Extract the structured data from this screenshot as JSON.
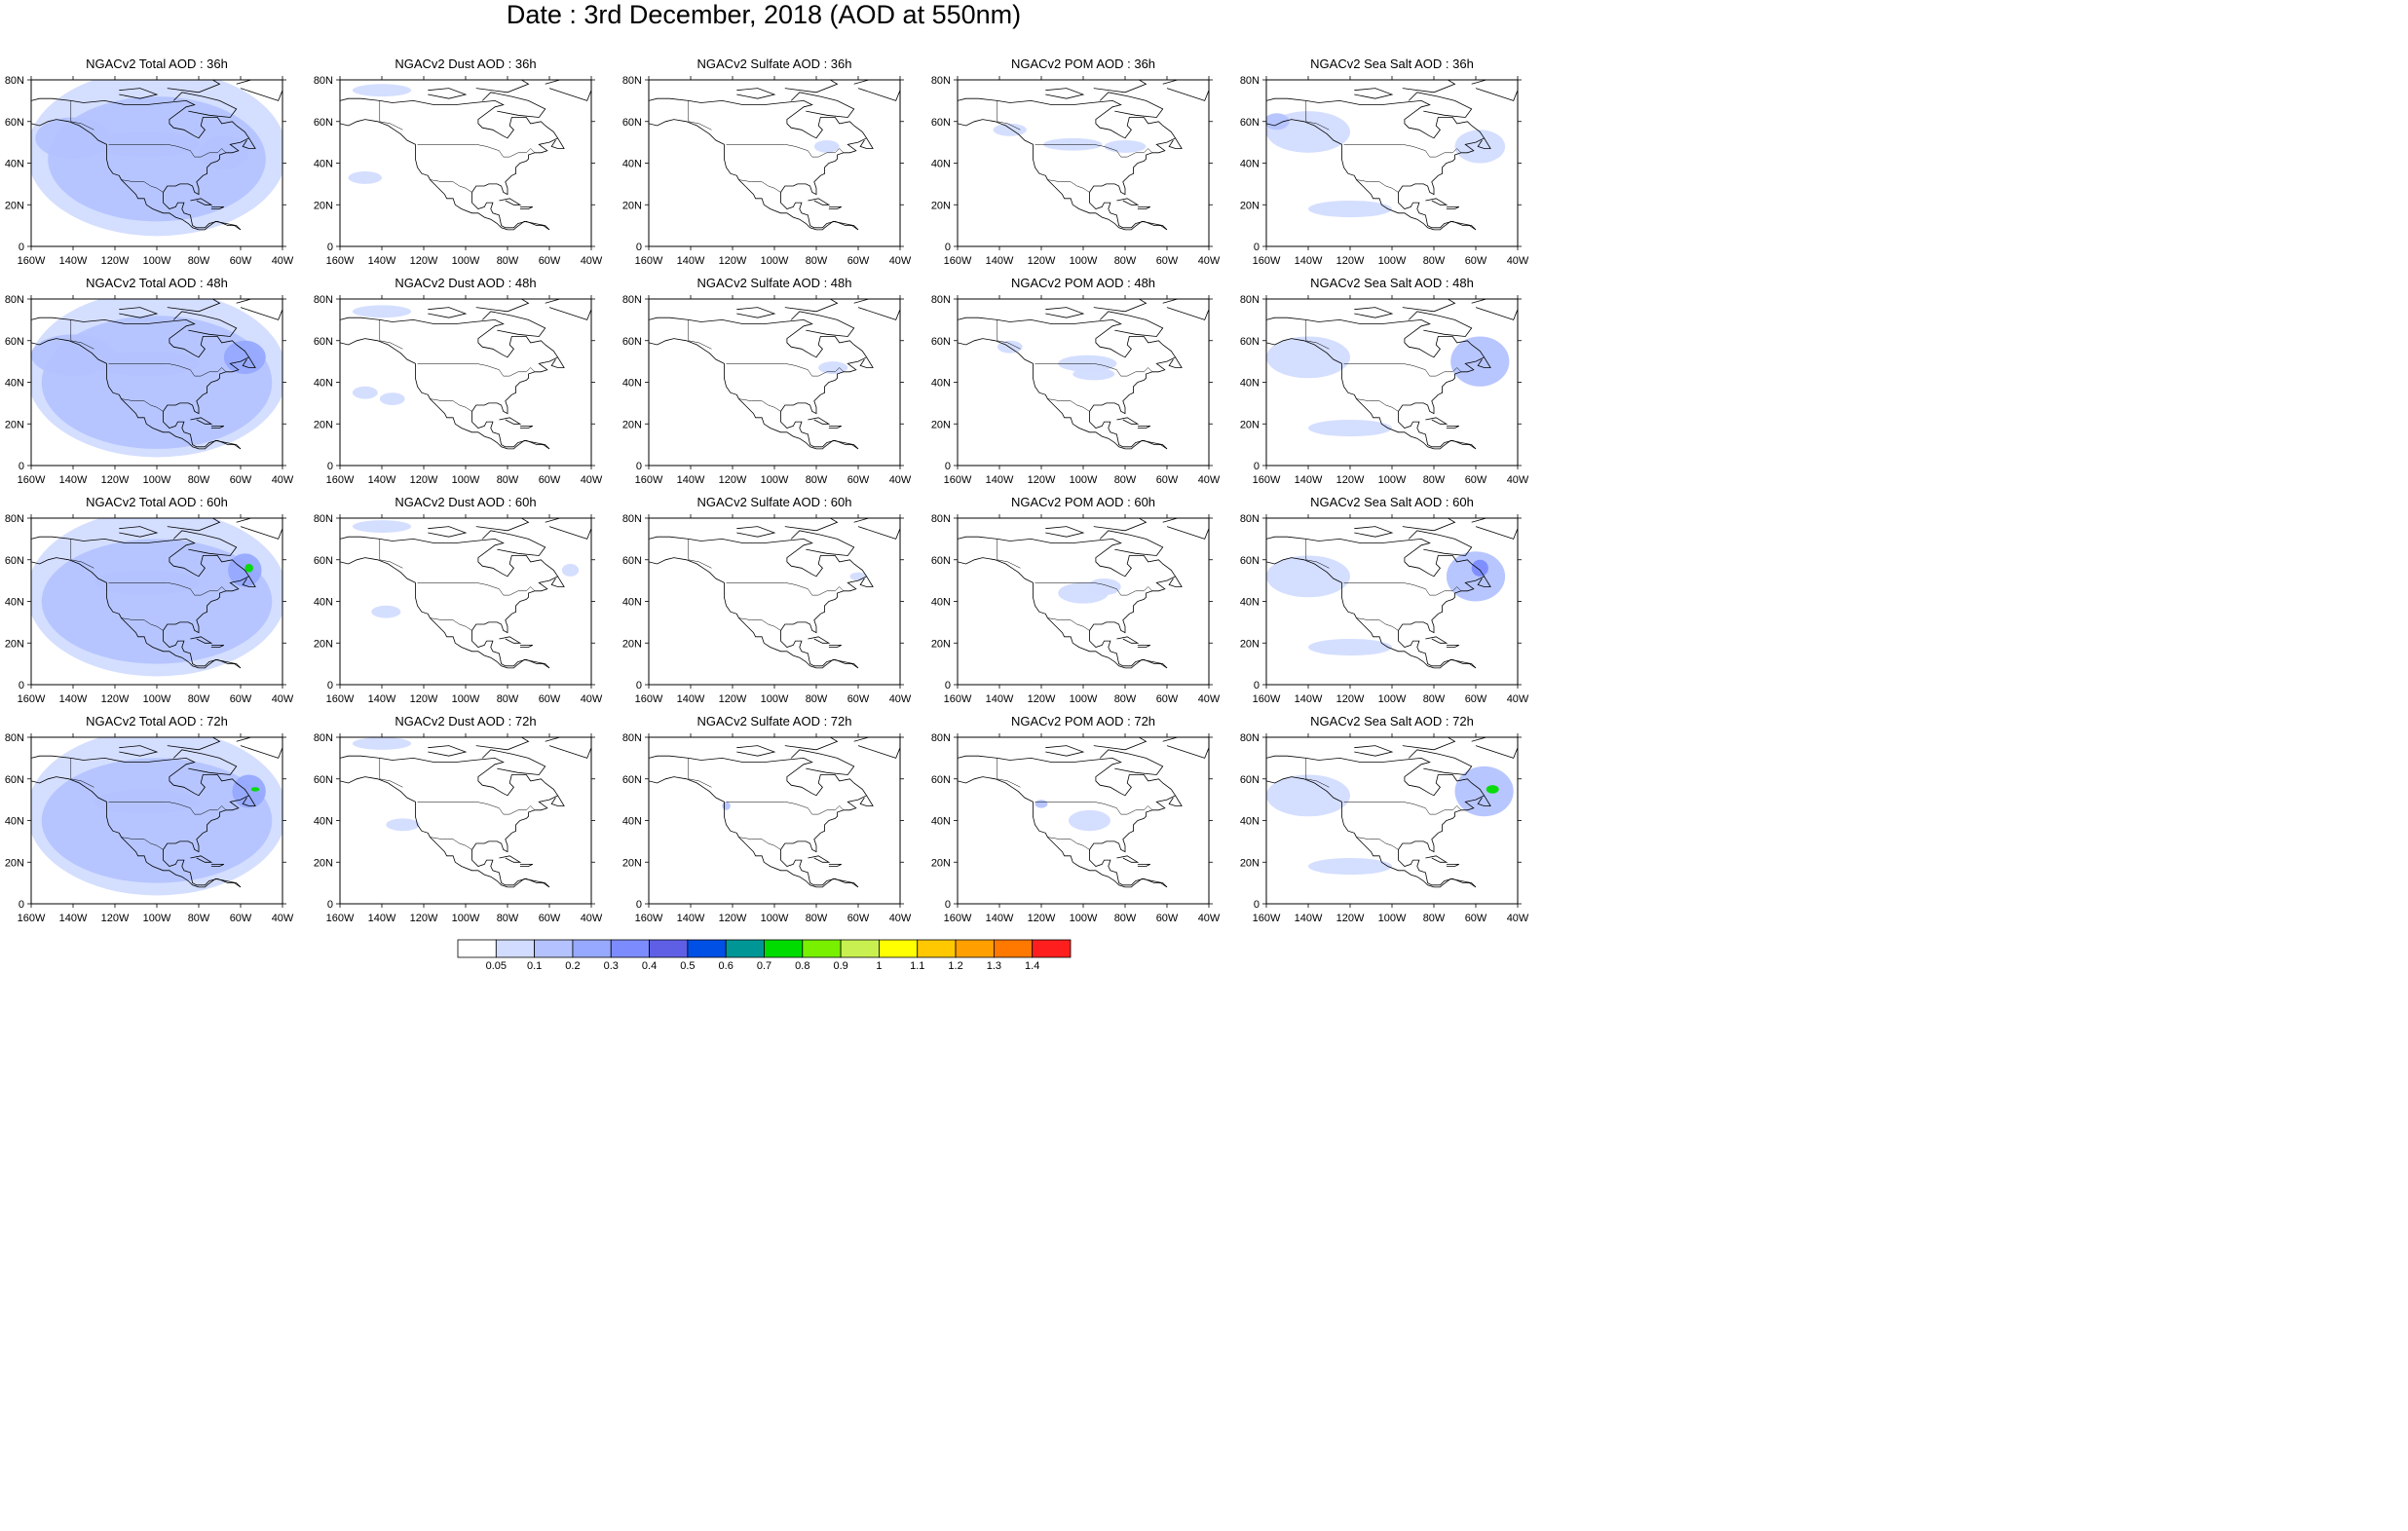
{
  "title": "Date : 3rd December, 2018 (AOD at 550nm)",
  "columns": [
    {
      "key": "total",
      "name": "Total AOD"
    },
    {
      "key": "dust",
      "name": "Dust AOD"
    },
    {
      "key": "sulfate",
      "name": "Sulfate AOD"
    },
    {
      "key": "pom",
      "name": "POM AOD"
    },
    {
      "key": "seasalt",
      "name": "Sea Salt AOD"
    }
  ],
  "rows": [
    "36h",
    "48h",
    "60h",
    "72h"
  ],
  "panels": [
    [
      "NGACv2 Total AOD : 36h",
      "NGACv2 Dust AOD : 36h",
      "NGACv2 Sulfate AOD : 36h",
      "NGACv2 POM AOD : 36h",
      "NGACv2 Sea Salt AOD : 36h"
    ],
    [
      "NGACv2 Total AOD : 48h",
      "NGACv2 Dust AOD : 48h",
      "NGACv2 Sulfate AOD : 48h",
      "NGACv2 POM AOD : 48h",
      "NGACv2 Sea Salt AOD : 48h"
    ],
    [
      "NGACv2 Total AOD : 60h",
      "NGACv2 Dust AOD : 60h",
      "NGACv2 Sulfate AOD : 60h",
      "NGACv2 POM AOD : 60h",
      "NGACv2 Sea Salt AOD : 60h"
    ],
    [
      "NGACv2 Total AOD : 72h",
      "NGACv2 Dust AOD : 72h",
      "NGACv2 Sulfate AOD : 72h",
      "NGACv2 POM AOD : 72h",
      "NGACv2 Sea Salt  AOD : 72h"
    ]
  ],
  "axes": {
    "lon_ticks": [
      "160W",
      "140W",
      "120W",
      "100W",
      "80W",
      "60W",
      "40W"
    ],
    "lat_ticks": [
      "0",
      "20N",
      "40N",
      "60N",
      "80N"
    ],
    "lon_range": [
      -160,
      -40
    ],
    "lat_range": [
      0,
      80
    ]
  },
  "colorbar": {
    "levels": [
      "0.05",
      "0.1",
      "0.2",
      "0.3",
      "0.4",
      "0.5",
      "0.6",
      "0.7",
      "0.8",
      "0.9",
      "1",
      "1.1",
      "1.2",
      "1.3",
      "1.4"
    ],
    "colors": [
      "#ffffff",
      "#d2dcff",
      "#b4c3ff",
      "#96a9ff",
      "#7c8cff",
      "#5f5fe6",
      "#0050e6",
      "#009696",
      "#00dc00",
      "#78f000",
      "#c8f050",
      "#ffff00",
      "#ffc800",
      "#ffa000",
      "#ff7800",
      "#ff1e1e"
    ]
  }
}
